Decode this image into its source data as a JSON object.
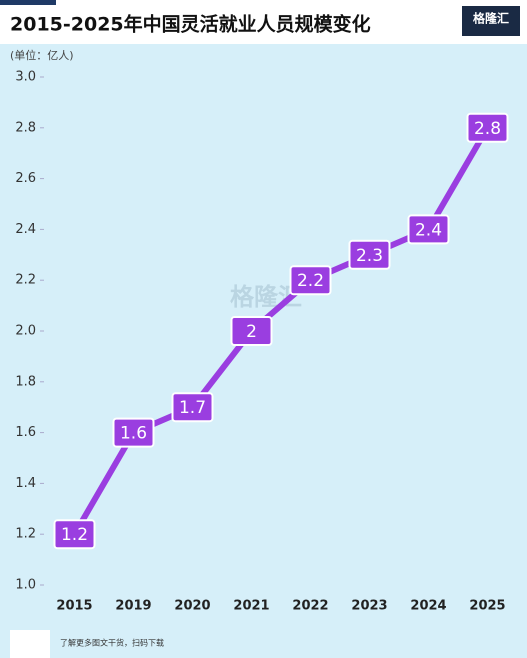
{
  "chart_data": {
    "type": "line",
    "title": "2015-2025年中国灵活就业人员规模变化",
    "unit_label": "(单位：亿人)",
    "logo": "格隆汇",
    "watermark": "格隆汇",
    "footer": "了解更多图文干货，扫码下载",
    "categories": [
      "2015",
      "2019",
      "2020",
      "2021",
      "2022",
      "2023",
      "2024",
      "2025"
    ],
    "values": [
      1.2,
      1.6,
      1.7,
      2,
      2.2,
      2.3,
      2.4,
      2.8
    ],
    "color": "#9a3ee0",
    "ylim": [
      1.0,
      3.0
    ],
    "yticks": [
      {
        "value": 1.0,
        "label": "1.0"
      },
      1.2,
      1.4,
      1.6,
      1.8,
      {
        "value": 2.0,
        "label": "2.0"
      },
      2.2,
      2.4,
      2.6,
      2.8,
      {
        "value": 3.0,
        "label": "3.0"
      }
    ]
  }
}
